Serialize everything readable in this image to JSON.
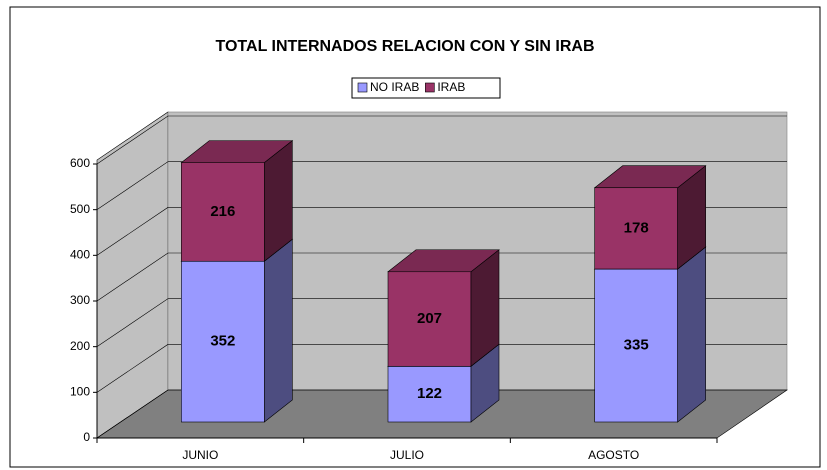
{
  "chart_data": {
    "type": "bar",
    "stacked": true,
    "title": "TOTAL INTERNADOS  RELACION CON Y SIN IRAB",
    "categories": [
      "JUNIO",
      "JULIO",
      "AGOSTO"
    ],
    "series": [
      {
        "name": "NO IRAB",
        "color": "#9999ff",
        "values": [
          352,
          122,
          335
        ]
      },
      {
        "name": "IRAB",
        "color": "#993366",
        "values": [
          216,
          207,
          178
        ]
      }
    ],
    "ylim": [
      0,
      600
    ],
    "yticks": [
      0,
      100,
      200,
      300,
      400,
      500,
      600
    ],
    "grid": true,
    "legend": "top"
  }
}
